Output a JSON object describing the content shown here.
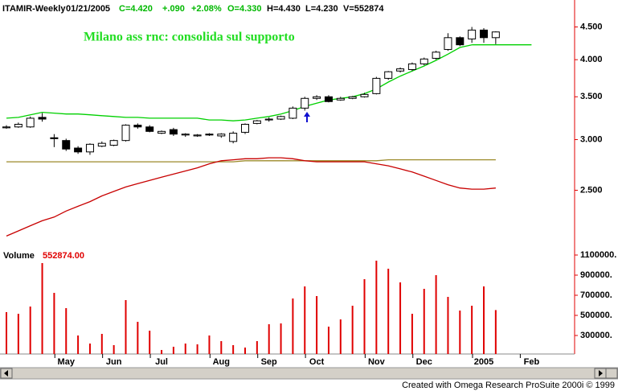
{
  "chart_data": [
    {
      "type": "candlestick",
      "header": [
        "ITAMIR-Weekly",
        "01/21/2005",
        "C=4.420",
        "+.090",
        "+2.08%",
        "O=4.330",
        "H=4.430",
        "L=4.230",
        "V=552874"
      ],
      "annotation": "Milano ass rnc: consolida sul supporto",
      "log_scale": true,
      "ylim": [
        2.05,
        4.93
      ],
      "yticks": [
        {
          "value": 2.5,
          "label": "2.500"
        },
        {
          "value": 3,
          "label": "3.000"
        },
        {
          "value": 3.5,
          "label": "3.500"
        },
        {
          "value": 4,
          "label": "4.000"
        },
        {
          "value": 4.5,
          "label": "4.500"
        }
      ],
      "up_color": "#ffffff",
      "down_color": "#000000",
      "open": [
        3.13,
        3.14,
        3.14,
        3.25,
        3.02,
        2.99,
        2.91,
        2.87,
        2.93,
        2.94,
        2.99,
        3.16,
        3.14,
        3.07,
        3.11,
        3.05,
        3.04,
        3.06,
        3.04,
        2.98,
        3.08,
        3.18,
        3.22,
        3.23,
        3.24,
        3.36,
        3.48,
        3.5,
        3.46,
        3.48,
        3.5,
        3.54,
        3.74,
        3.84,
        3.86,
        3.94,
        4.02,
        4.15,
        4.33,
        4.31,
        4.45,
        4.33,
        null,
        null,
        null
      ],
      "high": [
        3.16,
        3.19,
        3.26,
        3.3,
        3.06,
        3.01,
        2.93,
        2.96,
        2.98,
        3.0,
        3.17,
        3.18,
        3.16,
        3.1,
        3.13,
        3.07,
        3.06,
        3.07,
        3.07,
        3.09,
        3.18,
        3.22,
        3.25,
        3.27,
        3.38,
        3.5,
        3.52,
        3.52,
        3.5,
        3.51,
        3.55,
        3.76,
        3.84,
        3.89,
        3.96,
        4.03,
        4.13,
        4.4,
        4.35,
        4.5,
        4.48,
        4.43,
        null,
        null,
        null
      ],
      "low": [
        3.12,
        3.13,
        3.13,
        3.2,
        2.92,
        2.88,
        2.85,
        2.84,
        2.92,
        2.93,
        2.98,
        3.12,
        3.08,
        3.06,
        3.04,
        3.03,
        3.03,
        3.04,
        3.02,
        2.96,
        3.06,
        3.17,
        3.2,
        3.22,
        3.23,
        3.33,
        3.46,
        3.43,
        3.45,
        3.47,
        3.49,
        3.53,
        3.72,
        3.82,
        3.84,
        3.92,
        4.0,
        4.13,
        4.2,
        4.25,
        4.25,
        4.23,
        null,
        null,
        null
      ],
      "close": [
        3.14,
        3.17,
        3.24,
        3.23,
        3.01,
        2.9,
        2.87,
        2.95,
        2.96,
        2.99,
        3.16,
        3.14,
        3.09,
        3.09,
        3.06,
        3.06,
        3.05,
        3.05,
        3.06,
        3.07,
        3.17,
        3.21,
        3.23,
        3.26,
        3.36,
        3.48,
        3.5,
        3.44,
        3.48,
        3.5,
        3.53,
        3.74,
        3.83,
        3.87,
        3.94,
        4.01,
        4.11,
        4.33,
        4.22,
        4.45,
        4.33,
        4.42,
        null,
        null,
        null
      ],
      "series": [
        {
          "color": "#00d000",
          "values": [
            3.24,
            3.25,
            3.28,
            3.31,
            3.3,
            3.29,
            3.29,
            3.28,
            3.27,
            3.26,
            3.25,
            3.25,
            3.24,
            3.24,
            3.24,
            3.24,
            3.24,
            3.22,
            3.22,
            3.21,
            3.22,
            3.24,
            3.26,
            3.29,
            3.33,
            3.38,
            3.42,
            3.46,
            3.48,
            3.5,
            3.54,
            3.6,
            3.69,
            3.77,
            3.84,
            3.91,
            3.99,
            4.08,
            4.18,
            4.22,
            null,
            null,
            null,
            null,
            null
          ]
        },
        {
          "color": "#9c8a2a",
          "values": [
            2.77,
            2.77,
            2.77,
            2.77,
            2.77,
            2.77,
            2.77,
            2.77,
            2.77,
            2.77,
            2.77,
            2.77,
            2.77,
            2.77,
            2.77,
            2.77,
            2.77,
            2.77,
            2.77,
            2.77,
            2.78,
            2.78,
            2.78,
            2.78,
            2.78,
            2.78,
            2.78,
            2.78,
            2.78,
            2.78,
            2.78,
            2.78,
            2.79,
            2.79,
            2.79,
            2.79,
            2.79,
            2.79,
            2.79,
            2.79,
            2.79,
            2.79,
            null,
            null,
            null
          ]
        },
        {
          "color": "#c80000",
          "values": [
            2.12,
            2.16,
            2.2,
            2.24,
            2.27,
            2.32,
            2.36,
            2.4,
            2.45,
            2.49,
            2.53,
            2.56,
            2.59,
            2.62,
            2.65,
            2.68,
            2.71,
            2.75,
            2.78,
            2.79,
            2.8,
            2.8,
            2.81,
            2.81,
            2.8,
            2.78,
            2.77,
            2.77,
            2.77,
            2.77,
            2.77,
            2.75,
            2.73,
            2.7,
            2.67,
            2.63,
            2.59,
            2.55,
            2.52,
            2.51,
            2.51,
            2.52,
            null,
            null,
            null
          ]
        },
        {
          "color": "#00d000",
          "values": [
            null,
            null,
            null,
            null,
            null,
            null,
            null,
            null,
            null,
            null,
            null,
            null,
            null,
            null,
            null,
            null,
            null,
            null,
            null,
            null,
            null,
            null,
            null,
            null,
            null,
            null,
            null,
            null,
            null,
            null,
            null,
            null,
            null,
            null,
            null,
            null,
            null,
            null,
            null,
            4.22,
            4.22,
            4.22,
            4.22,
            4.22,
            4.22
          ]
        }
      ]
    },
    {
      "type": "bar",
      "title": "Volume",
      "subtitle": "552874.00",
      "color": "#e00000",
      "ylim": [
        116000,
        1156000
      ],
      "yticks": [
        {
          "value": 300000,
          "label": "300000."
        },
        {
          "value": 500000,
          "label": "500000."
        },
        {
          "value": 700000,
          "label": "700000."
        },
        {
          "value": 900000,
          "label": "900000."
        },
        {
          "value": 1100000,
          "label": "1100000."
        }
      ],
      "categories": [
        null,
        null,
        null,
        null,
        null,
        "May",
        null,
        null,
        null,
        "Jun",
        null,
        null,
        null,
        "Jul",
        null,
        null,
        null,
        null,
        "Aug",
        null,
        null,
        null,
        "Sep",
        null,
        null,
        null,
        "Oct",
        null,
        null,
        null,
        null,
        "Nov",
        null,
        null,
        null,
        "Dec",
        null,
        null,
        null,
        null,
        "2005",
        null,
        null,
        null,
        "Feb"
      ],
      "values": [
        532000,
        516000,
        588000,
        1020000,
        724000,
        572000,
        300000,
        220000,
        316000,
        204000,
        652000,
        436000,
        348000,
        156000,
        188000,
        220000,
        212000,
        300000,
        244000,
        204000,
        180000,
        244000,
        412000,
        420000,
        668000,
        788000,
        692000,
        388000,
        460000,
        596000,
        860000,
        1044000,
        964000,
        828000,
        516000,
        764000,
        900000,
        684000,
        548000,
        596000,
        788000,
        552874,
        null,
        null,
        null
      ]
    }
  ],
  "footer": "Created with Omega Research ProSuite 2000i © 1999"
}
